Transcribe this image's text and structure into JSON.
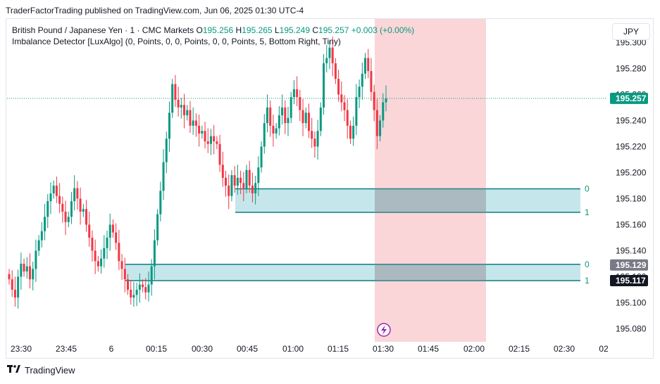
{
  "publisher_line": "TraderFactorTrading published on TradingView.com, Jun 06, 2025 01:30 UTC-4",
  "legend": {
    "symbol": "British Pound / Japanese Yen · 1 · CMC Markets",
    "o_label": "O",
    "o": "195.256",
    "h_label": "H",
    "h": "195.265",
    "l_label": "L",
    "l": "195.249",
    "c_label": "C",
    "c": "195.257",
    "change": "+0.003 (+0.00%)",
    "indicator": "Imbalance Detector [LuxAlgo] (0, Points, 0, 0, Points, 0, 0, Points, 5, Bottom Right, Tiny)"
  },
  "currency_button": "JPY",
  "footer_brand": "TradingView",
  "colors": {
    "up": "#089981",
    "down": "#f23645",
    "zone_fill": "#b2dfe6",
    "zone_line": "#0b7d7d",
    "highlight": "#f8c8cc",
    "last_price_bg": "#089981"
  },
  "chart_data": {
    "type": "candlestick",
    "ylim": [
      195.07,
      195.325
    ],
    "y_ticks": [
      "195.300",
      "195.280",
      "195.260",
      "195.240",
      "195.220",
      "195.200",
      "195.180",
      "195.160",
      "195.140",
      "195.120",
      "195.100",
      "195.080"
    ],
    "x_ticks": [
      "23:30",
      "23:45",
      "6",
      "00:15",
      "00:30",
      "00:45",
      "01:00",
      "01:15",
      "01:30",
      "01:45",
      "02:00",
      "02:15",
      "02:30",
      "02"
    ],
    "price_labels": [
      {
        "value": "195.257",
        "style": "last"
      },
      {
        "value": "195.129",
        "style": "gray"
      },
      {
        "value": "195.117",
        "style": "black"
      }
    ],
    "zones": [
      {
        "top": 195.1875,
        "bottom": 195.1695,
        "top_label": "0",
        "bottom_label": "1"
      },
      {
        "top": 195.1295,
        "bottom": 195.117,
        "top_label": "0",
        "bottom_label": "1"
      }
    ],
    "highlight_range": [
      "01:27",
      "02:04"
    ],
    "candles_close": [
      195.118,
      195.11,
      195.104,
      195.12,
      195.13,
      195.124,
      195.128,
      195.118,
      195.126,
      195.14,
      195.148,
      195.155,
      195.166,
      195.178,
      195.184,
      195.19,
      195.182,
      195.176,
      195.17,
      195.162,
      195.166,
      195.178,
      195.188,
      195.18,
      195.17,
      195.172,
      195.16,
      195.15,
      195.14,
      195.132,
      195.128,
      195.134,
      195.142,
      195.15,
      195.16,
      195.154,
      195.146,
      195.132,
      195.126,
      195.118,
      195.11,
      195.104,
      195.106,
      195.11,
      195.114,
      195.112,
      195.108,
      195.114,
      195.128,
      195.148,
      195.168,
      195.186,
      195.208,
      195.226,
      195.246,
      195.268,
      195.256,
      195.25,
      195.252,
      195.244,
      195.248,
      195.236,
      195.24,
      195.236,
      195.23,
      195.232,
      195.224,
      195.222,
      195.228,
      195.224,
      195.222,
      195.206,
      195.196,
      195.19,
      195.182,
      195.198,
      195.19,
      195.196,
      195.192,
      195.188,
      195.202,
      195.19,
      195.184,
      195.192,
      195.204,
      195.22,
      195.238,
      195.25,
      195.236,
      195.23,
      195.234,
      195.244,
      195.25,
      195.238,
      195.242,
      195.258,
      195.264,
      195.258,
      195.248,
      195.238,
      195.246,
      195.232,
      195.226,
      195.22,
      195.232,
      195.25,
      195.284,
      195.288,
      195.296,
      195.284,
      195.272,
      195.26,
      195.254,
      195.248,
      195.236,
      195.226,
      195.236,
      195.258,
      195.266,
      195.276,
      195.288,
      195.278,
      195.262,
      195.248,
      195.228,
      195.24,
      195.254,
      195.257
    ],
    "series": [
      {
        "name": "GBPJPY 1m",
        "values": "candles_close"
      }
    ]
  }
}
